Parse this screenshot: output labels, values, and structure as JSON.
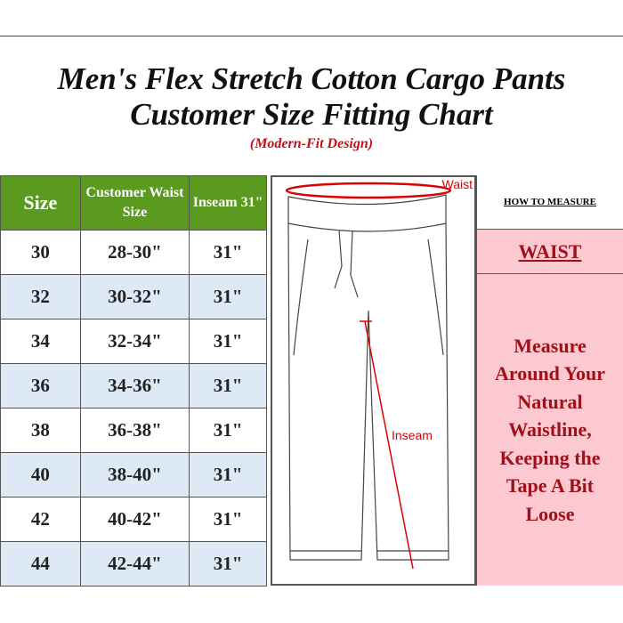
{
  "title": {
    "line1": "Men's Flex Stretch Cotton Cargo Pants",
    "line2": "Customer Size Fitting Chart",
    "subtitle": "(Modern-Fit Design)"
  },
  "table": {
    "headers": [
      "Size",
      "Customer Waist Size",
      "Inseam 31\""
    ],
    "rows": [
      [
        "30",
        "28-30\"",
        "31\""
      ],
      [
        "32",
        "30-32\"",
        "31\""
      ],
      [
        "34",
        "32-34\"",
        "31\""
      ],
      [
        "36",
        "34-36\"",
        "31\""
      ],
      [
        "38",
        "36-38\"",
        "31\""
      ],
      [
        "40",
        "38-40\"",
        "31\""
      ],
      [
        "42",
        "40-42\"",
        "31\""
      ],
      [
        "44",
        "42-44\"",
        "31\""
      ]
    ]
  },
  "diagram": {
    "waist_label": "Waist",
    "inseam_label": "Inseam"
  },
  "measure": {
    "heading": "HOW TO MEASURE",
    "part": "WAIST",
    "instruction": "Measure Around Your Natural Waistline, Keeping the Tape A Bit Loose"
  },
  "colors": {
    "header_green": "#5a9a1e",
    "row_blue": "#dde9f5",
    "pink": "#fcc9d0",
    "red_text": "#a0101a"
  }
}
